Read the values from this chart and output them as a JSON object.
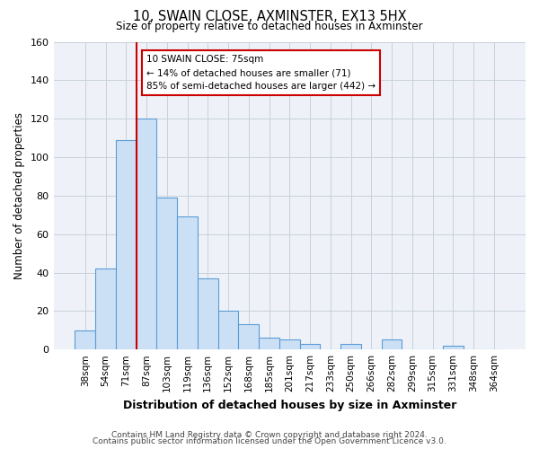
{
  "title": "10, SWAIN CLOSE, AXMINSTER, EX13 5HX",
  "subtitle": "Size of property relative to detached houses in Axminster",
  "xlabel": "Distribution of detached houses by size in Axminster",
  "ylabel": "Number of detached properties",
  "bar_labels": [
    "38sqm",
    "54sqm",
    "71sqm",
    "87sqm",
    "103sqm",
    "119sqm",
    "136sqm",
    "152sqm",
    "168sqm",
    "185sqm",
    "201sqm",
    "217sqm",
    "233sqm",
    "250sqm",
    "266sqm",
    "282sqm",
    "299sqm",
    "315sqm",
    "331sqm",
    "348sqm",
    "364sqm"
  ],
  "bar_values": [
    10,
    42,
    109,
    120,
    79,
    69,
    37,
    20,
    13,
    6,
    5,
    3,
    0,
    3,
    0,
    5,
    0,
    0,
    2,
    0,
    0
  ],
  "bar_color": "#cce0f5",
  "bar_edge_color": "#5b9bd5",
  "ylim": [
    0,
    160
  ],
  "yticks": [
    0,
    20,
    40,
    60,
    80,
    100,
    120,
    140,
    160
  ],
  "vline_x": 2.5,
  "vline_color": "#cc0000",
  "annotation_title": "10 SWAIN CLOSE: 75sqm",
  "annotation_line1": "← 14% of detached houses are smaller (71)",
  "annotation_line2": "85% of semi-detached houses are larger (442) →",
  "annotation_box_edge": "#cc0000",
  "footer_line1": "Contains HM Land Registry data © Crown copyright and database right 2024.",
  "footer_line2": "Contains public sector information licensed under the Open Government Licence v3.0.",
  "plot_bg_color": "#eef2f8",
  "fig_bg_color": "#ffffff",
  "grid_color": "#c8d0dc"
}
